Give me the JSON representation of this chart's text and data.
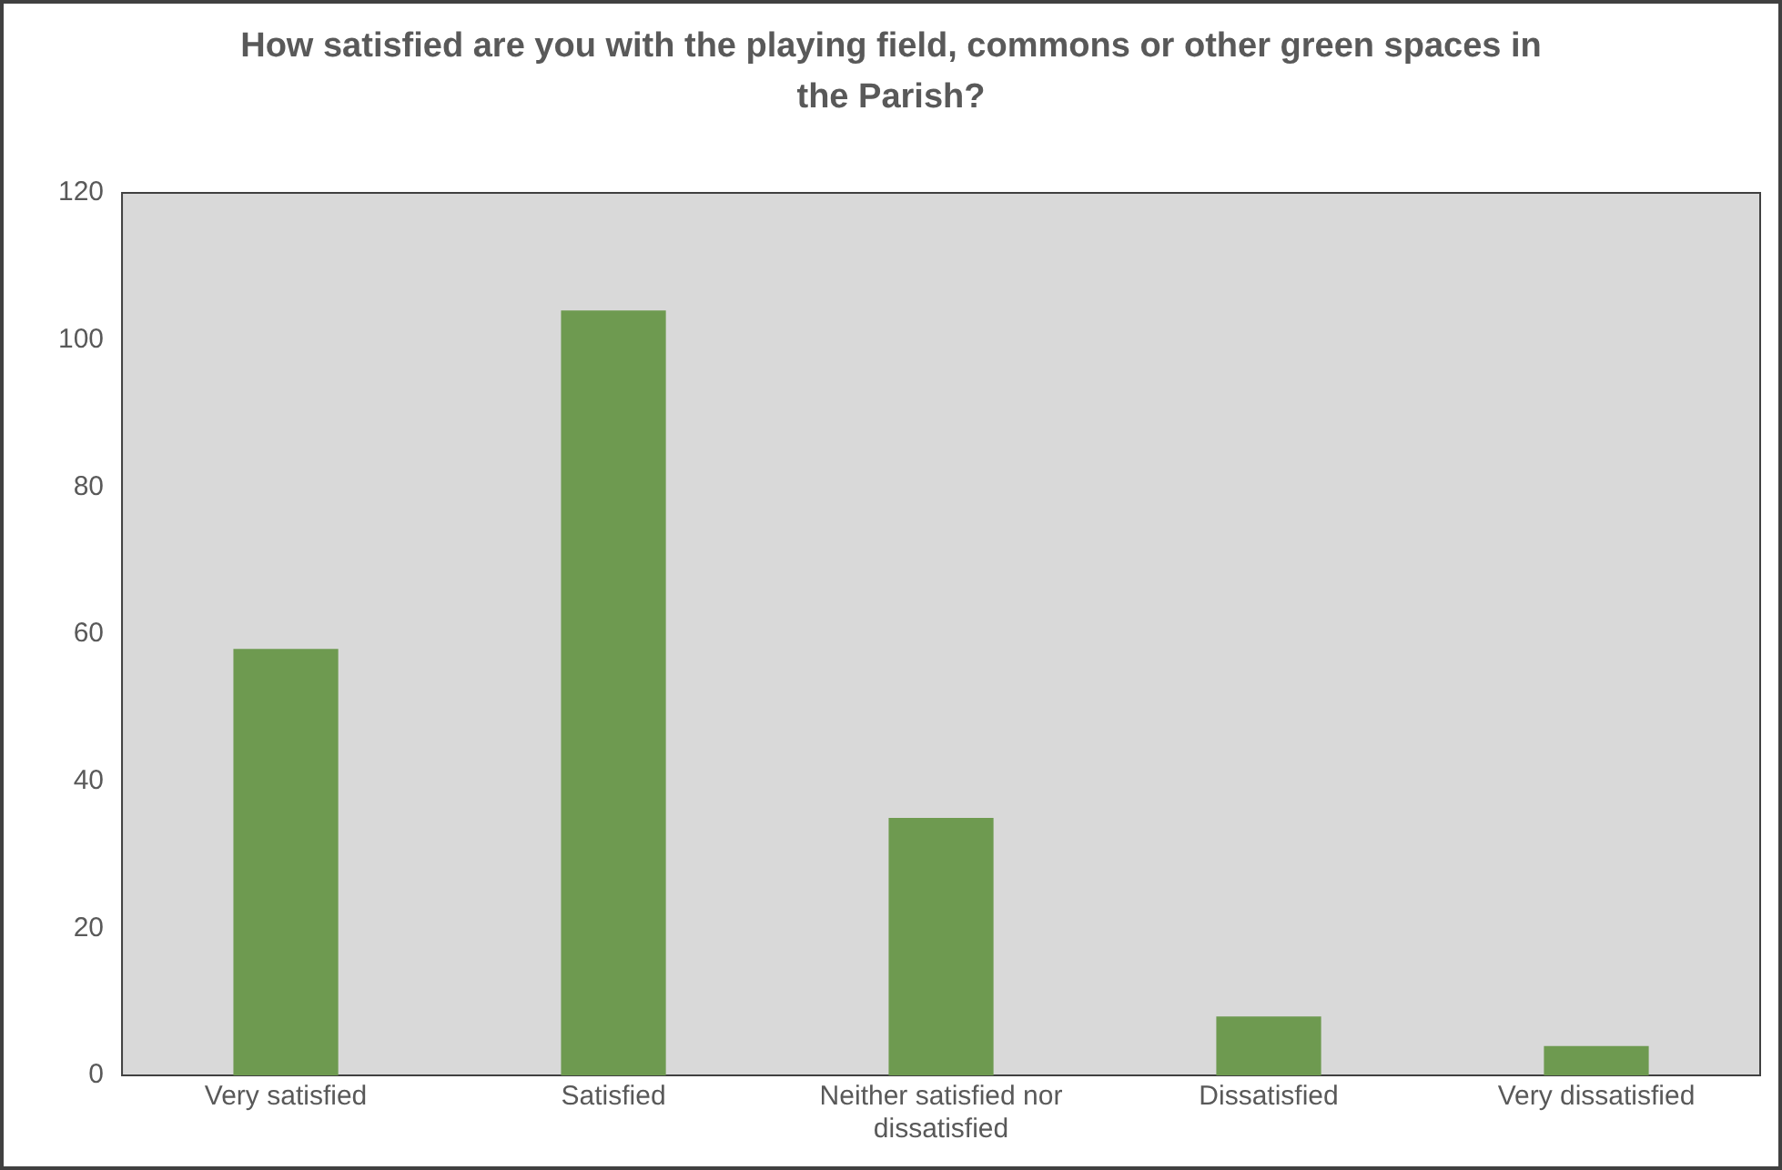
{
  "chart_data": {
    "type": "bar",
    "title": "How satisfied are you with the playing field, commons or other green spaces in the Parish?",
    "categories": [
      "Very satisfied",
      "Satisfied",
      "Neither satisfied nor dissatisfied",
      "Dissatisfied",
      "Very dissatisfied"
    ],
    "values": [
      58,
      104,
      35,
      8,
      4
    ],
    "color": "#6e9a50",
    "ylim": [
      0,
      120
    ],
    "yticks": [
      0,
      20,
      40,
      60,
      80,
      100,
      120
    ],
    "grid": false,
    "legend": false
  }
}
